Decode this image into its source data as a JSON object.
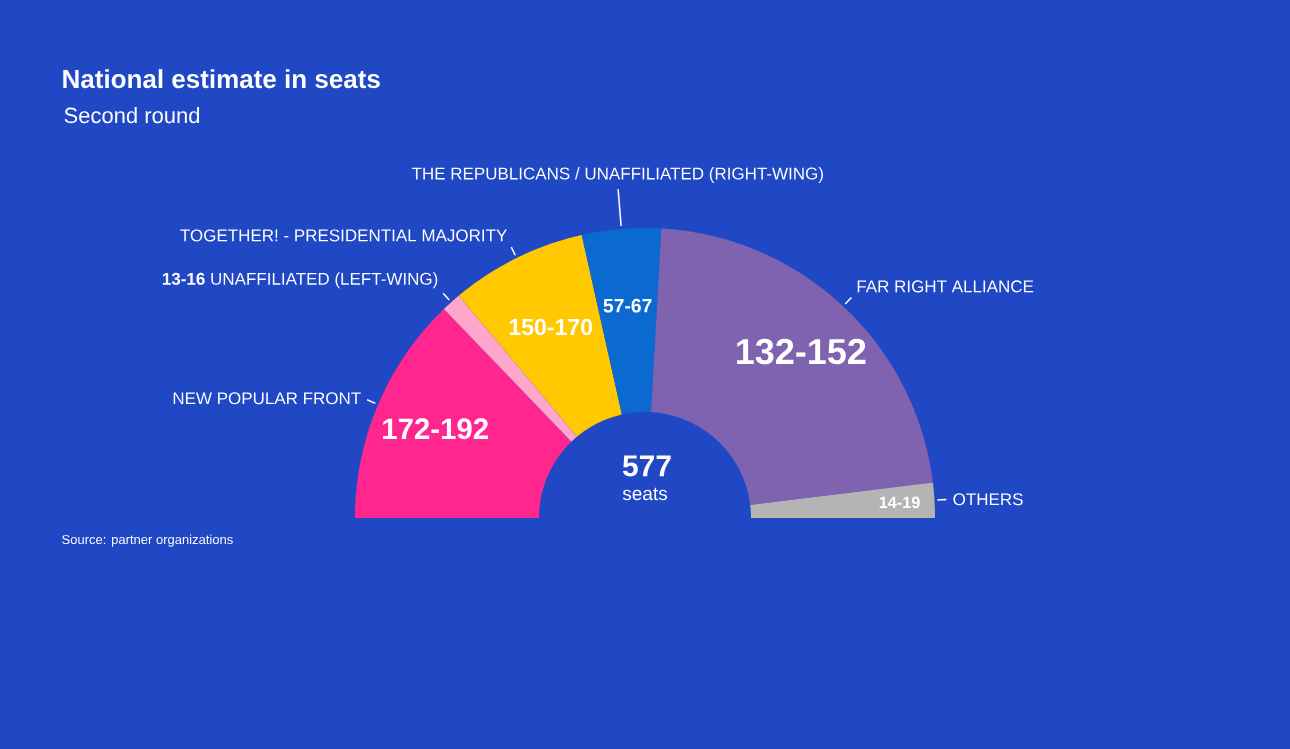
{
  "chart_data": {
    "type": "donut",
    "title": "National estimate in seats",
    "subtitle": "Second round",
    "categories": [
      "NEW POPULAR FRONT",
      "UNAFFILIATED (LEFT-WING)",
      "TOGETHER! - PRESIDENTIAL MAJORITY",
      "THE REPUBLICANS / UNAFFILIATED (RIGHT-WING)",
      "FAR RIGHT ALLIANCE",
      "OTHERS"
    ],
    "values": [
      25.6,
      2.2,
      15.2,
      8.8,
      44.3,
      3.9
    ],
    "colors": [
      "#ff2690",
      "#ffa6cc",
      "#ffc800",
      "#0a6ad0",
      "#7f62b0",
      "#b4b4b4"
    ],
    "value_labels": [
      "172-192",
      "13-16",
      "150-170",
      "57-67",
      "132-152",
      "14-19"
    ],
    "annotations": [
      "577",
      "seats",
      "Source: partner organizations"
    ]
  }
}
